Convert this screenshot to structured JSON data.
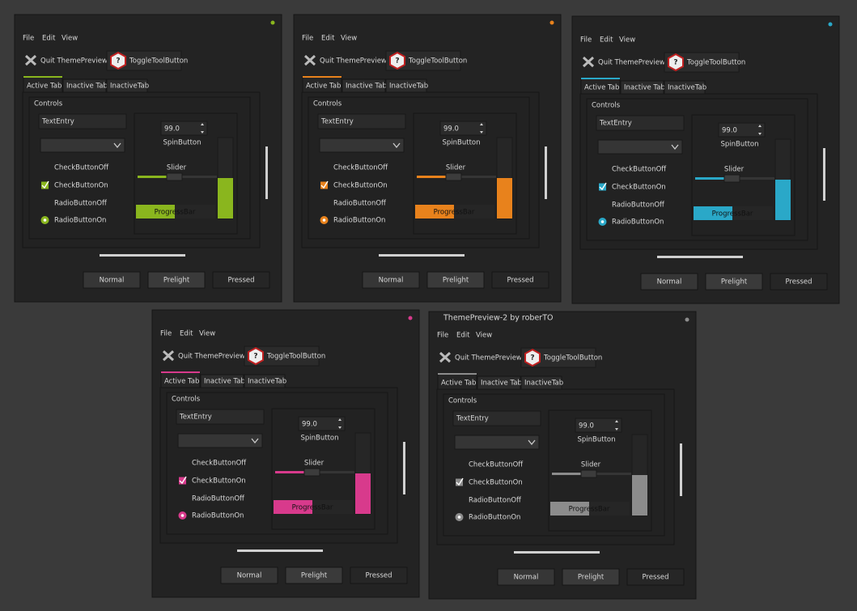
{
  "windows": [
    {
      "accent": "#8ab61e",
      "menu": [
        "File",
        "Edit",
        "View"
      ],
      "toolbar": [
        "Quit ThemePreview!",
        "ToggleToolButton"
      ],
      "tabs": [
        "Active Tab",
        "Inactive Tab",
        "InactiveTab"
      ],
      "frame_label": "Controls",
      "entry": "TextEntry",
      "spin_value": "99.0",
      "spin_label": "SpinButton",
      "slider_label": "Slider",
      "checks": [
        "CheckButtonOff",
        "CheckButtonOn"
      ],
      "radios": [
        "RadioButtonOff",
        "RadioButtonOn"
      ],
      "progress_label": "ProgressBar",
      "buttons": [
        "Normal",
        "Prelight",
        "Pressed"
      ]
    },
    {
      "accent": "#e8821c",
      "menu": [
        "File",
        "Edit",
        "View"
      ],
      "toolbar": [
        "Quit ThemePreview!",
        "ToggleToolButton"
      ],
      "tabs": [
        "Active Tab",
        "Inactive Tab",
        "InactiveTab"
      ],
      "frame_label": "Controls",
      "entry": "TextEntry",
      "spin_value": "99.0",
      "spin_label": "SpinButton",
      "slider_label": "Slider",
      "checks": [
        "CheckButtonOff",
        "CheckButtonOn"
      ],
      "radios": [
        "RadioButtonOff",
        "RadioButtonOn"
      ],
      "progress_label": "ProgressBar",
      "buttons": [
        "Normal",
        "Prelight",
        "Pressed"
      ]
    },
    {
      "accent": "#2aa8c8",
      "menu": [
        "File",
        "Edit",
        "View"
      ],
      "toolbar": [
        "Quit ThemePreview!",
        "ToggleToolButton"
      ],
      "tabs": [
        "Active Tab",
        "Inactive Tab",
        "InactiveTab"
      ],
      "frame_label": "Controls",
      "entry": "TextEntry",
      "spin_value": "99.0",
      "spin_label": "SpinButton",
      "slider_label": "Slider",
      "checks": [
        "CheckButtonOff",
        "CheckButtonOn"
      ],
      "radios": [
        "RadioButtonOff",
        "RadioButtonOn"
      ],
      "progress_label": "ProgressBar",
      "buttons": [
        "Normal",
        "Prelight",
        "Pressed"
      ]
    },
    {
      "accent": "#d83a8c",
      "menu": [
        "File",
        "Edit",
        "View"
      ],
      "toolbar": [
        "Quit ThemePreview!",
        "ToggleToolButton"
      ],
      "tabs": [
        "Active Tab",
        "Inactive Tab",
        "InactiveTab"
      ],
      "frame_label": "Controls",
      "entry": "TextEntry",
      "spin_value": "99.0",
      "spin_label": "SpinButton",
      "slider_label": "Slider",
      "checks": [
        "CheckButtonOff",
        "CheckButtonOn"
      ],
      "radios": [
        "RadioButtonOff",
        "RadioButtonOn"
      ],
      "progress_label": "ProgressBar",
      "buttons": [
        "Normal",
        "Prelight",
        "Pressed"
      ]
    },
    {
      "title": "ThemePreview-2 by roberTO",
      "accent": "#8c8c8c",
      "menu": [
        "File",
        "Edit",
        "View"
      ],
      "toolbar": [
        "Quit ThemePreview!",
        "ToggleToolButton"
      ],
      "tabs": [
        "Active Tab",
        "Inactive Tab",
        "InactiveTab"
      ],
      "frame_label": "Controls",
      "entry": "TextEntry",
      "spin_value": "99.0",
      "spin_label": "SpinButton",
      "slider_label": "Slider",
      "checks": [
        "CheckButtonOff",
        "CheckButtonOn"
      ],
      "radios": [
        "RadioButtonOff",
        "RadioButtonOn"
      ],
      "progress_label": "ProgressBar",
      "buttons": [
        "Normal",
        "Prelight",
        "Pressed"
      ]
    }
  ]
}
